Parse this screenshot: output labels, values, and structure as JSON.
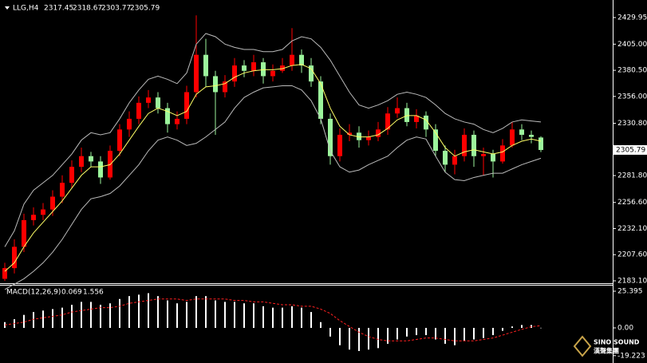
{
  "chart_data": [
    {
      "type": "candlestick",
      "symbol": "LLG,H4",
      "up_color": "#ff0000",
      "down_color": "#9cf59c",
      "ylim": [
        2180.85,
        2444.9
      ],
      "yticks": [
        2429.95,
        {
          "value": 2405,
          "label": "2405.00"
        },
        {
          "value": 2380.5,
          "label": "2380.50"
        },
        {
          "value": 2356,
          "label": "2356.00"
        },
        {
          "value": 2330.8,
          "label": "2330.80"
        },
        {
          "value": 2281.8,
          "label": "2281.80"
        },
        {
          "value": 2256.6,
          "label": "2256.60"
        },
        {
          "value": 2232.1,
          "label": "2232.10"
        },
        {
          "value": 2207.6,
          "label": "2207.60"
        },
        {
          "value": 2183.1,
          "label": "2183.10"
        }
      ],
      "candles": {
        "open": [
          2185,
          2195,
          2215,
          2240,
          2245,
          2250,
          2262,
          2275,
          2290,
          2300,
          2295,
          2280,
          2305,
          2325,
          2335,
          2350,
          2355,
          2345,
          2330,
          2335,
          2360,
          2395,
          2375,
          2360,
          2370,
          2385,
          2380,
          2388,
          2375,
          2380,
          2385,
          2395,
          2385,
          2370,
          2335,
          2300,
          2320,
          2322,
          2315,
          2318,
          2325,
          2340,
          2345,
          2332,
          2338,
          2325,
          2305,
          2292,
          2300,
          2320,
          2300,
          2302,
          2295,
          2310,
          2325,
          2320,
          2317.45
        ],
        "high": [
          2200,
          2222,
          2246,
          2252,
          2256,
          2268,
          2282,
          2296,
          2308,
          2304,
          2300,
          2310,
          2330,
          2342,
          2356,
          2362,
          2360,
          2350,
          2342,
          2366,
          2432,
          2410,
          2380,
          2376,
          2392,
          2390,
          2395,
          2392,
          2386,
          2392,
          2420,
          2400,
          2392,
          2375,
          2340,
          2326,
          2330,
          2328,
          2324,
          2332,
          2346,
          2355,
          2350,
          2344,
          2342,
          2330,
          2310,
          2306,
          2326,
          2324,
          2308,
          2306,
          2316,
          2332,
          2330,
          2324,
          2318.67
        ],
        "low": [
          2183,
          2190,
          2210,
          2235,
          2240,
          2244,
          2256,
          2270,
          2285,
          2290,
          2274,
          2278,
          2300,
          2318,
          2330,
          2345,
          2340,
          2322,
          2325,
          2330,
          2355,
          2365,
          2320,
          2355,
          2365,
          2374,
          2375,
          2368,
          2370,
          2378,
          2380,
          2378,
          2365,
          2330,
          2292,
          2295,
          2314,
          2308,
          2310,
          2314,
          2320,
          2336,
          2328,
          2326,
          2318,
          2300,
          2285,
          2283,
          2295,
          2290,
          2282,
          2280,
          2293,
          2308,
          2315,
          2312,
          2303.77
        ],
        "close": [
          2195,
          2215,
          2240,
          2245,
          2250,
          2262,
          2275,
          2290,
          2300,
          2295,
          2280,
          2305,
          2325,
          2335,
          2350,
          2355,
          2345,
          2330,
          2335,
          2360,
          2395,
          2375,
          2360,
          2370,
          2385,
          2380,
          2388,
          2375,
          2380,
          2385,
          2395,
          2385,
          2370,
          2335,
          2300,
          2320,
          2322,
          2315,
          2318,
          2325,
          2340,
          2345,
          2332,
          2338,
          2325,
          2305,
          2292,
          2300,
          2320,
          2300,
          2302,
          2295,
          2310,
          2325,
          2320,
          2318,
          2305.79
        ]
      },
      "lines": [
        {
          "color": "#ffff66",
          "values": [
            2192,
            2200,
            2215,
            2228,
            2238,
            2248,
            2258,
            2270,
            2282,
            2290,
            2290,
            2292,
            2302,
            2315,
            2328,
            2340,
            2345,
            2342,
            2338,
            2342,
            2358,
            2365,
            2366,
            2368,
            2374,
            2378,
            2380,
            2381,
            2381,
            2382,
            2385,
            2386,
            2382,
            2368,
            2345,
            2328,
            2320,
            2318,
            2318,
            2320,
            2326,
            2334,
            2338,
            2338,
            2334,
            2322,
            2308,
            2300,
            2304,
            2306,
            2304,
            2302,
            2304,
            2310,
            2314,
            2316,
            2314
          ]
        },
        {
          "color": "#bbbbbb",
          "values": [
            2215,
            2230,
            2255,
            2268,
            2275,
            2282,
            2292,
            2302,
            2315,
            2322,
            2320,
            2322,
            2335,
            2350,
            2362,
            2372,
            2375,
            2372,
            2368,
            2378,
            2405,
            2415,
            2412,
            2405,
            2402,
            2400,
            2400,
            2398,
            2398,
            2400,
            2408,
            2412,
            2410,
            2402,
            2390,
            2375,
            2360,
            2348,
            2345,
            2348,
            2352,
            2358,
            2360,
            2358,
            2355,
            2348,
            2340,
            2335,
            2332,
            2330,
            2325,
            2322,
            2326,
            2332,
            2334,
            2333,
            2332
          ]
        },
        {
          "color": "#bbbbbb",
          "values": [
            2175,
            2180,
            2185,
            2192,
            2200,
            2210,
            2222,
            2236,
            2250,
            2260,
            2262,
            2265,
            2272,
            2282,
            2292,
            2305,
            2315,
            2318,
            2315,
            2310,
            2312,
            2318,
            2325,
            2332,
            2345,
            2355,
            2360,
            2364,
            2365,
            2366,
            2366,
            2362,
            2352,
            2335,
            2305,
            2290,
            2285,
            2287,
            2292,
            2296,
            2300,
            2308,
            2315,
            2318,
            2316,
            2300,
            2285,
            2278,
            2277,
            2280,
            2282,
            2284,
            2284,
            2288,
            2292,
            2295,
            2298
          ]
        }
      ],
      "watermark": {
        "name": "SINO SOUND",
        "cn": "漢聲集團"
      }
    },
    {
      "type": "macd",
      "label": "MACD(12,26,9)",
      "ylim": [
        -24.3,
        29.26
      ],
      "yticks": [
        25.395,
        {
          "value": 0,
          "label": "0.00"
        },
        -19.223
      ],
      "hist_color": "#ffffff",
      "signal_color": "#ff2020",
      "macd": [
        4,
        6,
        9,
        11,
        12,
        13,
        14,
        16,
        18,
        18,
        16,
        17,
        20,
        22,
        23,
        24,
        22,
        19,
        17,
        18,
        22,
        22,
        19,
        18,
        18,
        17,
        17,
        15,
        14,
        14,
        15,
        14,
        11,
        4,
        -6,
        -12,
        -15,
        -16,
        -15,
        -14,
        -11,
        -8,
        -6,
        -5,
        -5,
        -8,
        -11,
        -12,
        -9,
        -8,
        -7,
        -5,
        -2,
        1,
        2,
        2,
        0.069
      ],
      "signal": [
        2,
        3,
        4,
        6,
        7,
        8,
        9,
        11,
        12,
        13,
        14,
        14,
        15,
        17,
        18,
        19,
        20,
        20,
        20,
        19,
        20,
        20,
        20,
        20,
        19,
        19,
        18,
        18,
        17,
        16,
        16,
        15,
        15,
        13,
        10,
        5,
        1,
        -3,
        -6,
        -8,
        -9,
        -9,
        -9,
        -8,
        -7,
        -7,
        -8,
        -9,
        -9,
        -9,
        -8,
        -7,
        -5,
        -3,
        -1,
        0.8,
        1.556
      ]
    }
  ]
}
